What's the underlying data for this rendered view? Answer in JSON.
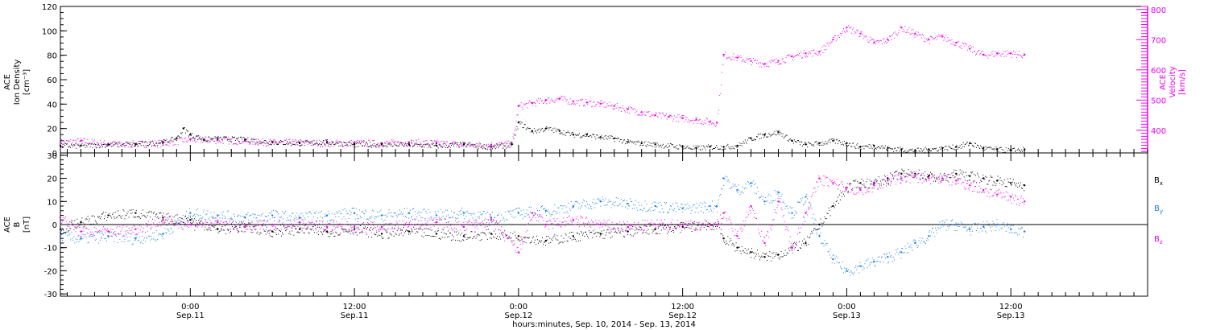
{
  "colors": {
    "density": "#000000",
    "velocity": "#ee00ee",
    "bx": "#000000",
    "by": "#1a7fe0",
    "bz": "#ee00ee",
    "axis": "#000000"
  },
  "xlabel": "hours:minutes, Sep. 10, 2014 - Sep. 13, 2014",
  "xticks": [
    {
      "hour": 24,
      "time": "0:00",
      "date": "Sep.11"
    },
    {
      "hour": 36,
      "time": "12:00",
      "date": "Sep.11"
    },
    {
      "hour": 48,
      "time": "0:00",
      "date": "Sep.12"
    },
    {
      "hour": 60,
      "time": "12:00",
      "date": "Sep.12"
    },
    {
      "hour": 72,
      "time": "0:00",
      "date": "Sep.13"
    },
    {
      "hour": 84,
      "time": "12:00",
      "date": "Sep.13"
    }
  ],
  "xlim_hours": [
    14.5,
    94
  ],
  "chart_data": [
    {
      "type": "scatter",
      "panel": "top",
      "title": "",
      "left_axis_label": [
        "ACE",
        "Ion Density",
        "[cm⁻³]"
      ],
      "right_axis_label": [
        "ACE",
        "Velocity",
        "[km/s]"
      ],
      "left_ylim": [
        0,
        120
      ],
      "left_yticks": [
        "0",
        "20",
        "40",
        "60",
        "80",
        "100",
        "120"
      ],
      "right_ylim": [
        325,
        810
      ],
      "right_yticks": [
        "400",
        "500",
        "600",
        "700",
        "800"
      ],
      "series": [
        {
          "name": "",
          "axis": "left",
          "color_key": "density",
          "x": [
            14.5,
            16,
            18,
            20,
            22,
            23,
            23.5,
            24,
            25,
            26,
            28,
            30,
            32,
            34,
            36,
            38,
            40,
            42,
            44,
            46,
            47.5,
            48,
            49,
            50,
            51,
            52,
            53,
            54,
            55,
            56,
            57,
            58,
            60,
            61,
            62,
            63,
            64,
            65,
            66,
            67,
            68,
            69,
            70,
            71,
            72,
            73,
            74,
            75,
            76,
            77,
            78,
            79,
            80,
            81,
            82,
            83,
            84,
            85
          ],
          "y": [
            6,
            6,
            7,
            7,
            9,
            12,
            20,
            15,
            11,
            12,
            11,
            9,
            8,
            9,
            7,
            7,
            7,
            6,
            7,
            5,
            7,
            25,
            18,
            20,
            18,
            15,
            15,
            13,
            12,
            9,
            8,
            7,
            5,
            4,
            5,
            5,
            6,
            12,
            15,
            17,
            10,
            7,
            8,
            10,
            8,
            5,
            6,
            4,
            3,
            2,
            3,
            4,
            5,
            8,
            4,
            3,
            2,
            3
          ]
        },
        {
          "name": "",
          "axis": "right",
          "color_key": "velocity",
          "x": [
            14.5,
            16,
            18,
            20,
            22,
            24,
            26,
            28,
            30,
            32,
            34,
            36,
            38,
            40,
            42,
            44,
            46,
            47.5,
            48,
            49,
            50,
            51,
            52,
            53,
            54,
            55,
            56,
            57,
            58,
            59,
            60,
            61,
            62,
            62.5,
            63,
            64,
            65,
            66,
            67,
            68,
            69,
            70,
            71,
            72,
            73,
            74,
            75,
            76,
            77,
            78,
            79,
            80,
            81,
            82,
            83,
            84,
            85
          ],
          "y": [
            360,
            365,
            355,
            355,
            358,
            370,
            368,
            365,
            360,
            360,
            358,
            358,
            357,
            360,
            358,
            352,
            352,
            355,
            480,
            490,
            500,
            505,
            495,
            492,
            488,
            480,
            470,
            460,
            450,
            445,
            440,
            435,
            428,
            425,
            650,
            640,
            630,
            620,
            630,
            645,
            655,
            660,
            700,
            740,
            720,
            690,
            700,
            740,
            720,
            700,
            710,
            690,
            670,
            650,
            655,
            655,
            650
          ]
        }
      ]
    },
    {
      "type": "scatter",
      "panel": "bottom",
      "title": "",
      "ylabel": [
        "ACE",
        "B",
        "[nT]"
      ],
      "ylim": [
        -31,
        31
      ],
      "yticks": [
        "-30",
        "-20",
        "-10",
        "0",
        "10",
        "20",
        "30"
      ],
      "legend_placement": "right",
      "zero_line": true,
      "series": [
        {
          "name": "Bx",
          "color_key": "bx",
          "x": [
            14.5,
            16,
            18,
            20,
            22,
            24,
            26,
            28,
            30,
            32,
            34,
            36,
            38,
            40,
            42,
            44,
            46,
            48,
            50,
            52,
            54,
            56,
            58,
            60,
            62,
            62.5,
            63,
            64,
            65,
            66,
            67,
            68,
            69,
            70,
            71,
            72,
            73,
            74,
            75,
            76,
            77,
            78,
            79,
            80,
            81,
            82,
            83,
            84,
            85
          ],
          "y": [
            -2,
            1,
            4,
            5,
            3,
            2,
            -2,
            -1,
            -3,
            -2,
            -3,
            -2,
            -4,
            -3,
            -4,
            -5,
            -4,
            -5,
            -7,
            -5,
            -4,
            -3,
            -2,
            -1,
            0,
            0,
            -6,
            -10,
            -12,
            -14,
            -13,
            -10,
            -8,
            0,
            8,
            16,
            18,
            18,
            20,
            22,
            22,
            21,
            20,
            22,
            21,
            20,
            19,
            18,
            17
          ]
        },
        {
          "name": "By",
          "color_key": "by",
          "x": [
            14.5,
            16,
            18,
            20,
            22,
            24,
            26,
            28,
            30,
            32,
            34,
            36,
            38,
            40,
            42,
            44,
            46,
            48,
            50,
            52,
            54,
            56,
            58,
            60,
            62,
            62.5,
            63,
            64,
            65,
            66,
            67,
            68,
            69,
            70,
            71,
            72,
            73,
            74,
            75,
            76,
            77,
            78,
            79,
            80,
            81,
            82,
            83,
            84,
            85
          ],
          "y": [
            -5,
            -6,
            -5,
            -6,
            -4,
            5,
            4,
            3,
            4,
            3,
            4,
            5,
            4,
            5,
            4,
            5,
            3,
            5,
            6,
            8,
            10,
            9,
            8,
            7,
            8,
            8,
            20,
            15,
            18,
            10,
            14,
            5,
            12,
            -5,
            -15,
            -20,
            -18,
            -16,
            -14,
            -12,
            -8,
            -5,
            0,
            0,
            -2,
            -1,
            0,
            -2,
            -3
          ]
        },
        {
          "name": "Bz",
          "color_key": "bz",
          "x": [
            14.5,
            16,
            18,
            20,
            22,
            24,
            26,
            28,
            30,
            32,
            34,
            36,
            38,
            40,
            42,
            44,
            46,
            48,
            49,
            50,
            52,
            54,
            56,
            58,
            60,
            62,
            62.5,
            63,
            64,
            65,
            66,
            67,
            68,
            69,
            70,
            71,
            72,
            73,
            74,
            75,
            76,
            77,
            78,
            79,
            80,
            81,
            82,
            83,
            84,
            85
          ],
          "y": [
            3,
            -3,
            -3,
            -2,
            2,
            0,
            1,
            -1,
            0,
            1,
            -1,
            -1,
            -1,
            0,
            1,
            -1,
            2,
            -12,
            5,
            0,
            2,
            0,
            -1,
            0,
            0,
            0,
            0,
            5,
            -5,
            8,
            -8,
            10,
            -10,
            5,
            20,
            18,
            16,
            15,
            17,
            19,
            20,
            21,
            20,
            20,
            19,
            17,
            15,
            13,
            12,
            10
          ]
        }
      ]
    }
  ]
}
